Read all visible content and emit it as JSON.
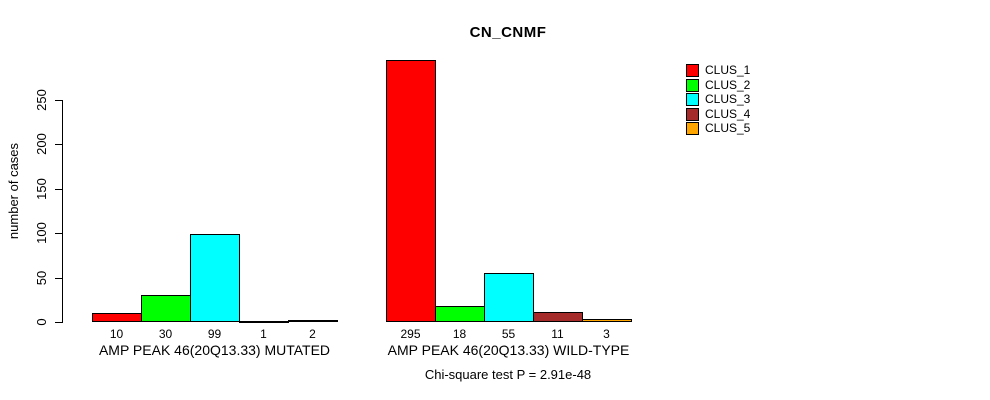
{
  "title": "CN_CNMF",
  "footer": "Chi-square test P = 2.91e-48",
  "chart_data": {
    "type": "bar",
    "title": "CN_CNMF",
    "xlabel": "",
    "ylabel": "number of cases",
    "yticks": [
      0,
      50,
      100,
      150,
      200,
      250
    ],
    "ylim": [
      0,
      295
    ],
    "grid": false,
    "legend_position": "right",
    "legend": [
      {
        "label": "CLUS_1",
        "color": "#ff0000"
      },
      {
        "label": "CLUS_2",
        "color": "#00ff00"
      },
      {
        "label": "CLUS_3",
        "color": "#00ffff"
      },
      {
        "label": "CLUS_4",
        "color": "#a52a2a"
      },
      {
        "label": "CLUS_5",
        "color": "#ffa500"
      }
    ],
    "groups": [
      {
        "label": "AMP PEAK 46(20Q13.33) MUTATED",
        "values": [
          10,
          30,
          99,
          1,
          2
        ]
      },
      {
        "label": "AMP PEAK 46(20Q13.33) WILD-TYPE",
        "values": [
          295,
          18,
          55,
          11,
          3
        ]
      }
    ],
    "annotation": "Chi-square test P = 2.91e-48"
  }
}
